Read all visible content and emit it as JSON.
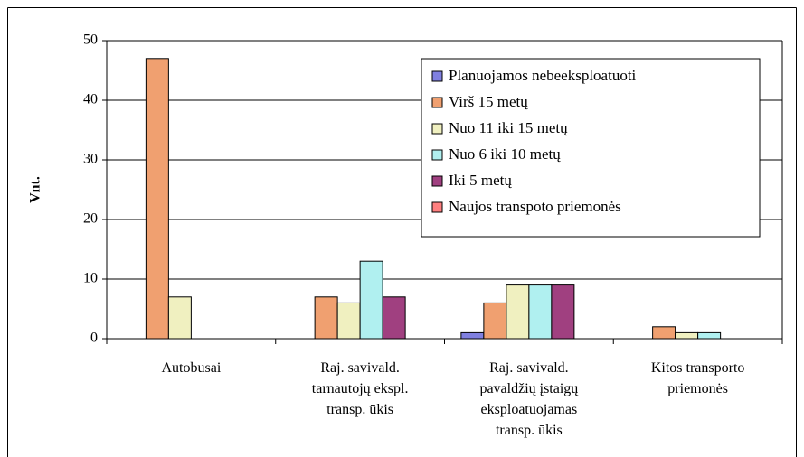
{
  "chart_data": {
    "type": "bar",
    "y_label": "Vnt.",
    "categories": [
      "Autobusai",
      "Raj. savivald. tarnautojų ekspl. transp. ūkis",
      "Raj. savivald. pavaldžių įstaigų eksploatuojamas transp. ūkis",
      "Kitos transporto priemonės"
    ],
    "series": [
      {
        "name": "Planuojamos nebeeksploatuoti",
        "color": "#8080e0",
        "values": [
          0,
          0,
          1,
          0
        ]
      },
      {
        "name": "Virš 15 metų",
        "color": "#f0a070",
        "values": [
          47,
          7,
          6,
          2
        ]
      },
      {
        "name": "Nuo 11 iki 15 metų",
        "color": "#f0f0c0",
        "values": [
          7,
          6,
          9,
          1
        ]
      },
      {
        "name": "Nuo 6 iki 10 metų",
        "color": "#b0f0f0",
        "values": [
          0,
          13,
          9,
          1
        ]
      },
      {
        "name": "Iki 5 metų",
        "color": "#a04080",
        "values": [
          0,
          7,
          9,
          0
        ]
      },
      {
        "name": "Naujos transpoto priemonės",
        "color": "#ff8080",
        "values": [
          0,
          0,
          0,
          0
        ]
      }
    ],
    "ylim": [
      0,
      50
    ],
    "yticks": [
      0,
      10,
      20,
      30,
      40,
      50
    ],
    "grid": true,
    "legend": "top-right"
  }
}
